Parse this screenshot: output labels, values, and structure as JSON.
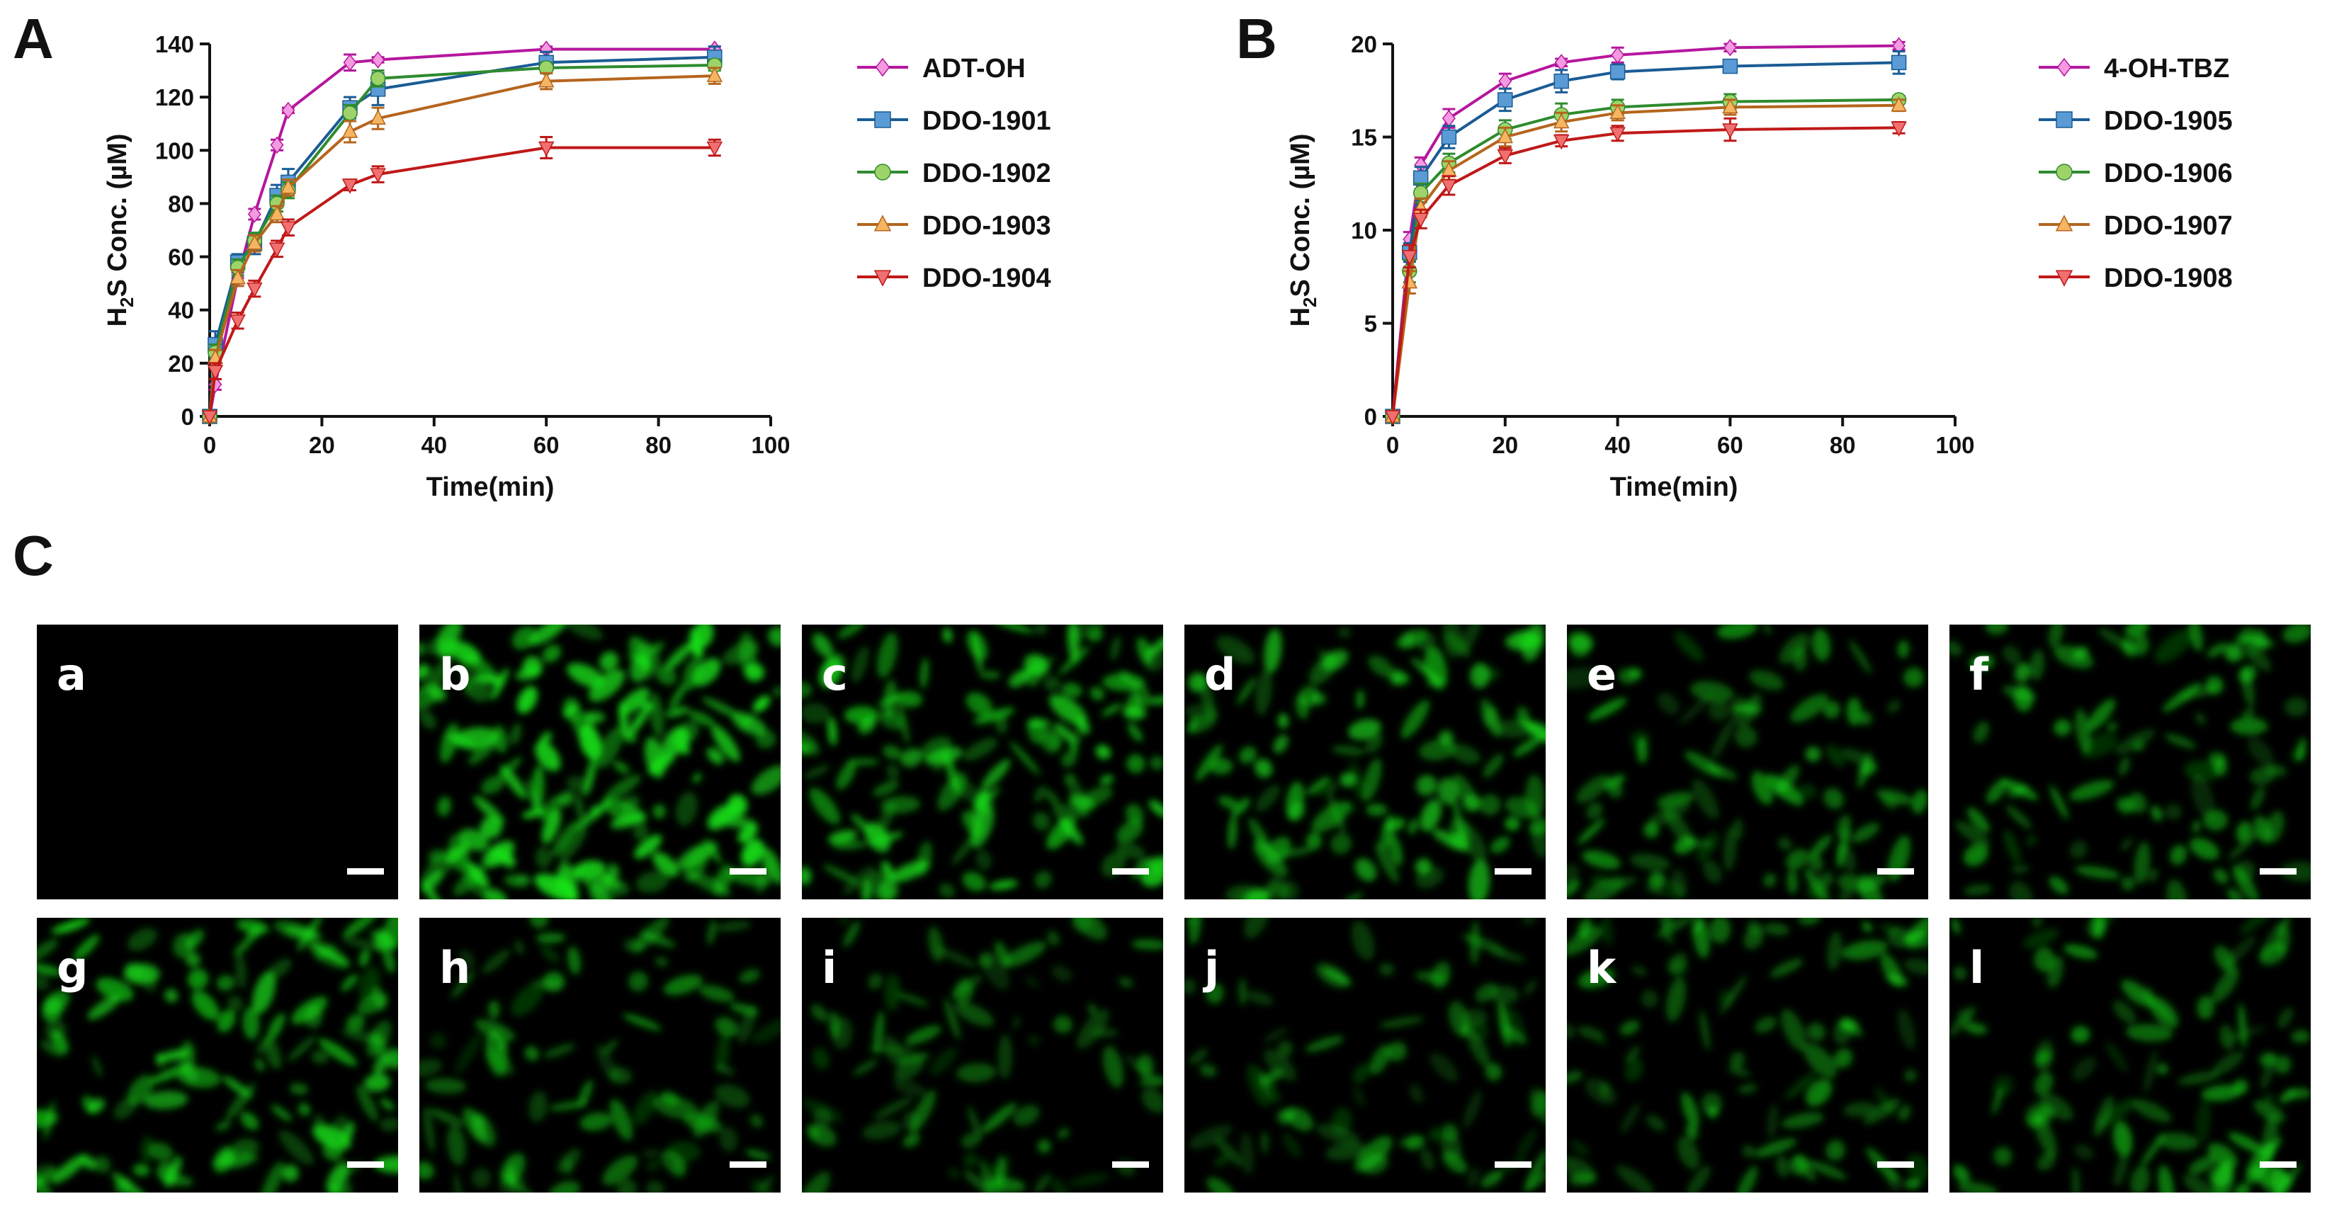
{
  "panels": {
    "a": "A",
    "b": "B",
    "c": "C"
  },
  "chart_data": [
    {
      "type": "line",
      "panel": "A",
      "xlabel": "Time(min)",
      "ylabel_main": "H",
      "ylabel_sub": "2",
      "ylabel_rest": "S Conc. (µM)",
      "xlim": [
        0,
        100
      ],
      "ylim": [
        0,
        140
      ],
      "xticks": [
        0,
        20,
        40,
        60,
        80,
        100
      ],
      "yticks": [
        0,
        20,
        40,
        60,
        80,
        100,
        120,
        140
      ],
      "legend_position": "right",
      "series": [
        {
          "name": "ADT-OH",
          "color": "#b5179e",
          "fill": "#f59ae0",
          "marker": "diamond",
          "x": [
            0,
            1,
            5,
            8,
            12,
            14,
            25,
            30,
            60,
            90
          ],
          "y": [
            0,
            12,
            52,
            76,
            102,
            115,
            133,
            134,
            138,
            138
          ],
          "err": [
            0,
            2,
            2,
            2,
            2,
            1,
            3,
            1,
            1,
            1
          ]
        },
        {
          "name": "DDO-1901",
          "color": "#1a5c95",
          "fill": "#5b9bd5",
          "marker": "square",
          "x": [
            0,
            1,
            5,
            8,
            12,
            14,
            25,
            30,
            60,
            90
          ],
          "y": [
            0,
            27,
            58,
            65,
            83,
            88,
            116,
            123,
            133,
            135
          ],
          "err": [
            0,
            5,
            3,
            4,
            4,
            5,
            4,
            6,
            4,
            4
          ]
        },
        {
          "name": "DDO-1902",
          "color": "#2e8b2e",
          "fill": "#9ed36a",
          "marker": "circle",
          "x": [
            0,
            1,
            5,
            8,
            12,
            14,
            25,
            30,
            60,
            90
          ],
          "y": [
            0,
            24,
            56,
            66,
            80,
            85,
            114,
            127,
            131,
            132
          ],
          "err": [
            0,
            3,
            3,
            3,
            3,
            3,
            3,
            3,
            2,
            2
          ]
        },
        {
          "name": "DDO-1903",
          "color": "#b5651d",
          "fill": "#f5b562",
          "marker": "triangle-up",
          "x": [
            0,
            1,
            5,
            8,
            12,
            14,
            25,
            30,
            60,
            90
          ],
          "y": [
            0,
            22,
            52,
            65,
            76,
            86,
            107,
            112,
            126,
            128
          ],
          "err": [
            0,
            3,
            3,
            3,
            3,
            3,
            4,
            4,
            3,
            3
          ]
        },
        {
          "name": "DDO-1904",
          "color": "#c01818",
          "fill": "#f07070",
          "marker": "triangle-down",
          "x": [
            0,
            1,
            5,
            8,
            12,
            14,
            25,
            30,
            60,
            90
          ],
          "y": [
            0,
            17,
            36,
            48,
            63,
            71,
            87,
            91,
            101,
            101
          ],
          "err": [
            0,
            3,
            3,
            3,
            3,
            3,
            2,
            3,
            4,
            3
          ]
        }
      ]
    },
    {
      "type": "line",
      "panel": "B",
      "xlabel": "Time(min)",
      "ylabel_main": "H",
      "ylabel_sub": "2",
      "ylabel_rest": "S Conc. (µM)",
      "xlim": [
        0,
        100
      ],
      "ylim": [
        0,
        20
      ],
      "xticks": [
        0,
        20,
        40,
        60,
        80,
        100
      ],
      "yticks": [
        0,
        5,
        10,
        15,
        20
      ],
      "legend_position": "right",
      "series": [
        {
          "name": "4-OH-TBZ",
          "color": "#b5179e",
          "fill": "#f59ae0",
          "marker": "diamond",
          "x": [
            0,
            3,
            5,
            10,
            20,
            30,
            40,
            60,
            90
          ],
          "y": [
            0,
            9.5,
            13.5,
            16,
            18,
            19,
            19.4,
            19.8,
            19.9
          ],
          "err": [
            0,
            0.4,
            0.4,
            0.5,
            0.4,
            0.2,
            0.4,
            0.2,
            0.2
          ]
        },
        {
          "name": "DDO-1905",
          "color": "#1a5c95",
          "fill": "#5b9bd5",
          "marker": "square",
          "x": [
            0,
            3,
            5,
            10,
            20,
            30,
            40,
            60,
            90
          ],
          "y": [
            0,
            8.8,
            12.8,
            15,
            17,
            18,
            18.5,
            18.8,
            19
          ],
          "err": [
            0,
            0.5,
            0.6,
            0.6,
            0.6,
            0.6,
            0.4,
            0.2,
            0.6
          ]
        },
        {
          "name": "DDO-1906",
          "color": "#2e8b2e",
          "fill": "#9ed36a",
          "marker": "circle",
          "x": [
            0,
            3,
            5,
            10,
            20,
            30,
            40,
            60,
            90
          ],
          "y": [
            0,
            7.8,
            12,
            13.6,
            15.4,
            16.2,
            16.6,
            16.9,
            17
          ],
          "err": [
            0,
            0.6,
            0.5,
            0.5,
            0.5,
            0.6,
            0.4,
            0.4,
            0.2
          ]
        },
        {
          "name": "DDO-1907",
          "color": "#b5651d",
          "fill": "#f5b562",
          "marker": "triangle-up",
          "x": [
            0,
            3,
            5,
            10,
            20,
            30,
            40,
            60,
            90
          ],
          "y": [
            0,
            7.2,
            11.2,
            13.2,
            15,
            15.8,
            16.3,
            16.6,
            16.7
          ],
          "err": [
            0,
            0.6,
            0.5,
            0.5,
            0.5,
            0.5,
            0.4,
            0.4,
            0.3
          ]
        },
        {
          "name": "DDO-1908",
          "color": "#c01818",
          "fill": "#f07070",
          "marker": "triangle-down",
          "x": [
            0,
            3,
            5,
            10,
            20,
            30,
            40,
            60,
            90
          ],
          "y": [
            0,
            8.6,
            10.6,
            12.4,
            14,
            14.8,
            15.2,
            15.4,
            15.5
          ],
          "err": [
            0,
            0.6,
            0.5,
            0.5,
            0.4,
            0.3,
            0.4,
            0.6,
            0.3
          ]
        }
      ]
    }
  ],
  "micrographs": {
    "tiles": [
      {
        "label": "a",
        "brightness": 0.0
      },
      {
        "label": "b",
        "brightness": 0.95
      },
      {
        "label": "c",
        "brightness": 0.75
      },
      {
        "label": "d",
        "brightness": 0.6
      },
      {
        "label": "e",
        "brightness": 0.45
      },
      {
        "label": "f",
        "brightness": 0.45
      },
      {
        "label": "g",
        "brightness": 0.7
      },
      {
        "label": "h",
        "brightness": 0.35
      },
      {
        "label": "i",
        "brightness": 0.3
      },
      {
        "label": "j",
        "brightness": 0.3
      },
      {
        "label": "k",
        "brightness": 0.4
      },
      {
        "label": "l",
        "brightness": 0.4
      }
    ],
    "cell_color": "#19e619",
    "background_color": "#000000",
    "scale_bar_color": "#ffffff"
  }
}
